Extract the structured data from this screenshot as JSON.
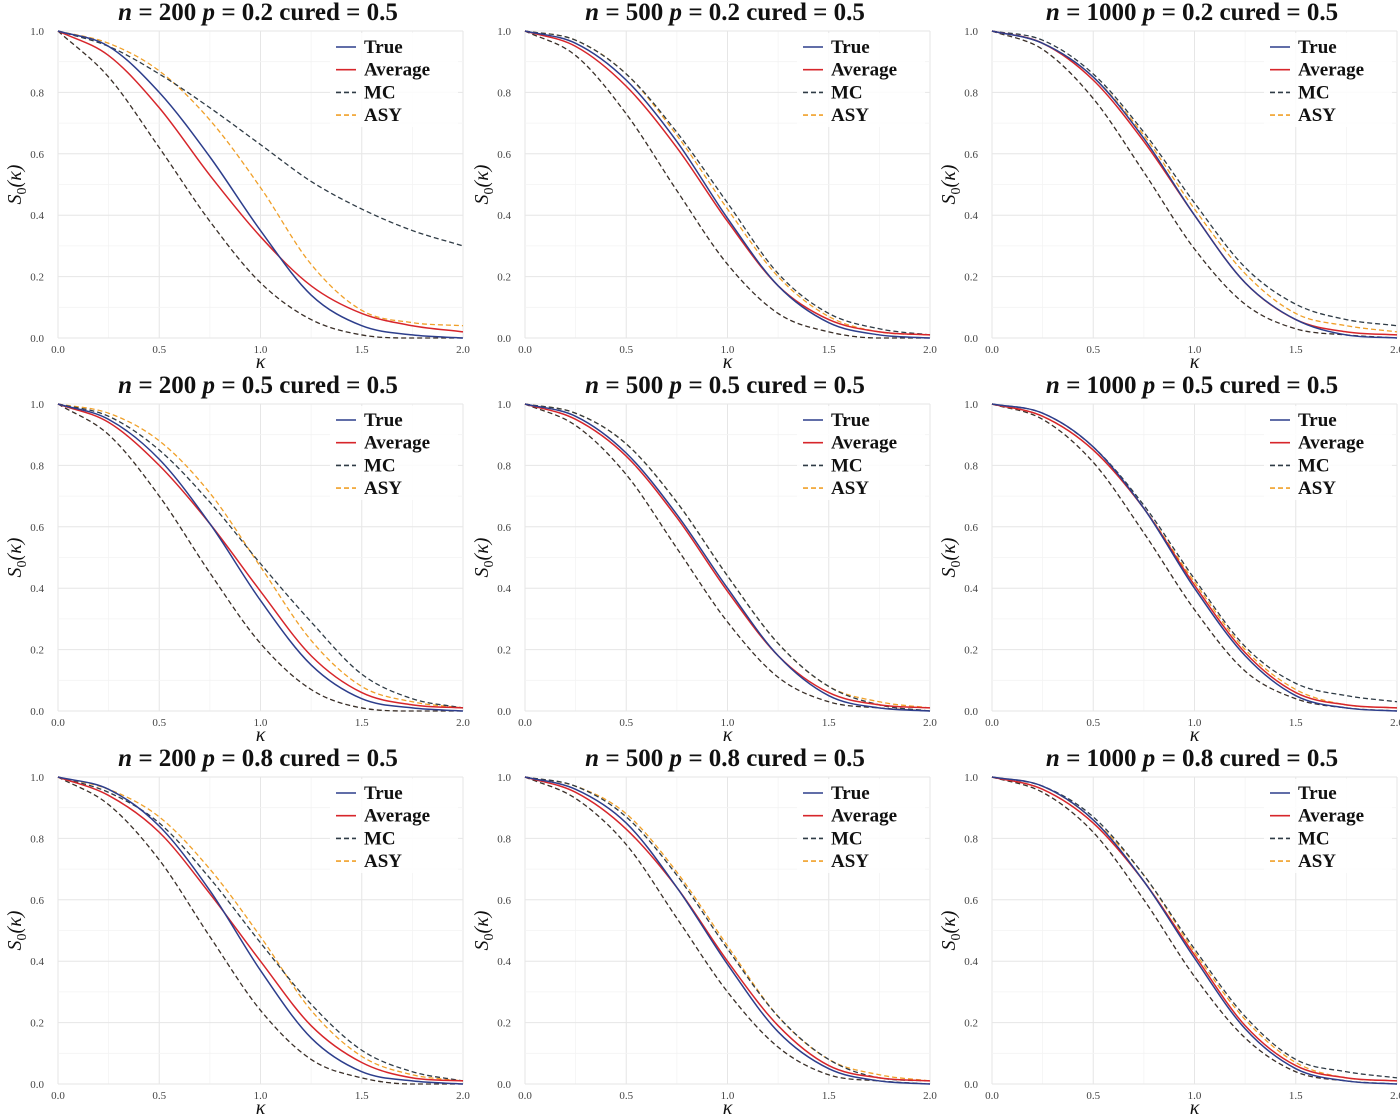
{
  "chart_data": [
    {
      "type": "line",
      "title_parts": [
        "n =",
        "200",
        "p =",
        "0.2 cured =",
        "0.5"
      ],
      "xlabel": "κ",
      "ylabel_main": "S",
      "ylabel_sub": "0",
      "ylabel_arg": "(κ)",
      "xlim": [
        0,
        2
      ],
      "ylim": [
        0,
        1
      ],
      "xticks": [
        "0.0",
        "0.5",
        "1.0",
        "1.5",
        "2.0"
      ],
      "yticks": [
        "0.0",
        "0.2",
        "0.4",
        "0.6",
        "0.8",
        "1.0"
      ],
      "grid": true,
      "legend_position": "top-right",
      "x": [
        0,
        0.25,
        0.5,
        0.75,
        1.0,
        1.25,
        1.5,
        1.75,
        2.0
      ],
      "series": [
        {
          "name": "True",
          "color": "#2d3e8c",
          "dash": "solid",
          "values": [
            1.0,
            0.95,
            0.8,
            0.59,
            0.35,
            0.14,
            0.04,
            0.01,
            0.0
          ]
        },
        {
          "name": "Average",
          "color": "#d7262b",
          "dash": "solid",
          "values": [
            1.0,
            0.92,
            0.75,
            0.53,
            0.33,
            0.17,
            0.08,
            0.04,
            0.02
          ]
        },
        {
          "name": "MC",
          "color": "#2f3b45",
          "dash": "dashed",
          "values": [
            1.0,
            0.95,
            0.86,
            0.75,
            0.63,
            0.51,
            0.42,
            0.35,
            0.3
          ]
        },
        {
          "name": "ASY",
          "color": "#f0a029",
          "dash": "dashed",
          "values": [
            1.0,
            0.96,
            0.87,
            0.71,
            0.49,
            0.24,
            0.09,
            0.05,
            0.04
          ]
        }
      ],
      "reference_line": {
        "color": "#3a2f28",
        "values": [
          1.0,
          0.85,
          0.62,
          0.38,
          0.18,
          0.06,
          0.01,
          0.0,
          0.0
        ]
      }
    },
    {
      "type": "line",
      "title_parts": [
        "n =",
        "500",
        "p =",
        "0.2 cured =",
        "0.5"
      ],
      "xlabel": "κ",
      "ylabel_main": "S",
      "ylabel_sub": "0",
      "ylabel_arg": "(κ)",
      "xlim": [
        0,
        2
      ],
      "ylim": [
        0,
        1
      ],
      "xticks": [
        "0.0",
        "0.5",
        "1.0",
        "1.5",
        "2.0"
      ],
      "yticks": [
        "0.0",
        "0.2",
        "0.4",
        "0.6",
        "0.8",
        "1.0"
      ],
      "grid": true,
      "legend_position": "top-right",
      "x": [
        0,
        0.25,
        0.5,
        0.75,
        1.0,
        1.25,
        1.5,
        1.75,
        2.0
      ],
      "series": [
        {
          "name": "True",
          "color": "#2d3e8c",
          "dash": "solid",
          "values": [
            1.0,
            0.96,
            0.84,
            0.64,
            0.39,
            0.17,
            0.05,
            0.01,
            0.0
          ]
        },
        {
          "name": "Average",
          "color": "#d7262b",
          "dash": "solid",
          "values": [
            1.0,
            0.95,
            0.82,
            0.62,
            0.38,
            0.17,
            0.06,
            0.02,
            0.01
          ]
        },
        {
          "name": "MC",
          "color": "#2f3b45",
          "dash": "dashed",
          "values": [
            1.0,
            0.97,
            0.86,
            0.67,
            0.44,
            0.21,
            0.08,
            0.03,
            0.01
          ]
        },
        {
          "name": "ASY",
          "color": "#f0a029",
          "dash": "dashed",
          "values": [
            1.0,
            0.97,
            0.86,
            0.66,
            0.42,
            0.2,
            0.07,
            0.02,
            0.01
          ]
        }
      ],
      "reference_line": {
        "color": "#3a2f28",
        "values": [
          1.0,
          0.92,
          0.73,
          0.48,
          0.24,
          0.08,
          0.02,
          0.0,
          0.0
        ]
      }
    },
    {
      "type": "line",
      "title_parts": [
        "n =",
        "1000",
        "p =",
        "0.2 cured =",
        "0.5"
      ],
      "xlabel": "κ",
      "ylabel_main": "S",
      "ylabel_sub": "0",
      "ylabel_arg": "(κ)",
      "xlim": [
        0,
        2
      ],
      "ylim": [
        0,
        1
      ],
      "xticks": [
        "0.0",
        "0.5",
        "1.0",
        "1.5",
        "2.0"
      ],
      "yticks": [
        "0.0",
        "0.2",
        "0.4",
        "0.6",
        "0.8",
        "1.0"
      ],
      "grid": true,
      "legend_position": "top-right",
      "x": [
        0,
        0.25,
        0.5,
        0.75,
        1.0,
        1.25,
        1.5,
        1.75,
        2.0
      ],
      "series": [
        {
          "name": "True",
          "color": "#2d3e8c",
          "dash": "solid",
          "values": [
            1.0,
            0.96,
            0.85,
            0.65,
            0.4,
            0.18,
            0.06,
            0.01,
            0.0
          ]
        },
        {
          "name": "Average",
          "color": "#d7262b",
          "dash": "solid",
          "values": [
            1.0,
            0.96,
            0.84,
            0.64,
            0.4,
            0.18,
            0.06,
            0.02,
            0.01
          ]
        },
        {
          "name": "MC",
          "color": "#2f3b45",
          "dash": "dashed",
          "values": [
            1.0,
            0.97,
            0.86,
            0.67,
            0.44,
            0.23,
            0.11,
            0.06,
            0.04
          ]
        },
        {
          "name": "ASY",
          "color": "#f0a029",
          "dash": "dashed",
          "values": [
            1.0,
            0.96,
            0.85,
            0.66,
            0.42,
            0.21,
            0.08,
            0.04,
            0.02
          ]
        }
      ],
      "reference_line": {
        "color": "#3a2f28",
        "values": [
          1.0,
          0.94,
          0.78,
          0.54,
          0.29,
          0.11,
          0.03,
          0.01,
          0.0
        ]
      }
    },
    {
      "type": "line",
      "title_parts": [
        "n =",
        "200",
        "p =",
        "0.5 cured =",
        "0.5"
      ],
      "xlabel": "κ",
      "ylabel_main": "S",
      "ylabel_sub": "0",
      "ylabel_arg": "(κ)",
      "xlim": [
        0,
        2
      ],
      "ylim": [
        0,
        1
      ],
      "xticks": [
        "0.0",
        "0.5",
        "1.0",
        "1.5",
        "2.0"
      ],
      "yticks": [
        "0.0",
        "0.2",
        "0.4",
        "0.6",
        "0.8",
        "1.0"
      ],
      "grid": true,
      "legend_position": "top-right",
      "x": [
        0,
        0.25,
        0.5,
        0.75,
        1.0,
        1.25,
        1.5,
        1.75,
        2.0
      ],
      "series": [
        {
          "name": "True",
          "color": "#2d3e8c",
          "dash": "solid",
          "values": [
            1.0,
            0.95,
            0.82,
            0.61,
            0.36,
            0.15,
            0.04,
            0.01,
            0.0
          ]
        },
        {
          "name": "Average",
          "color": "#d7262b",
          "dash": "solid",
          "values": [
            1.0,
            0.94,
            0.8,
            0.61,
            0.39,
            0.18,
            0.06,
            0.02,
            0.01
          ]
        },
        {
          "name": "MC",
          "color": "#2f3b45",
          "dash": "dashed",
          "values": [
            1.0,
            0.96,
            0.85,
            0.68,
            0.48,
            0.29,
            0.12,
            0.04,
            0.01
          ]
        },
        {
          "name": "ASY",
          "color": "#f0a029",
          "dash": "dashed",
          "values": [
            1.0,
            0.97,
            0.88,
            0.71,
            0.47,
            0.23,
            0.08,
            0.03,
            0.01
          ]
        }
      ],
      "reference_line": {
        "color": "#3a2f28",
        "values": [
          1.0,
          0.9,
          0.7,
          0.45,
          0.22,
          0.07,
          0.01,
          0.0,
          0.0
        ]
      }
    },
    {
      "type": "line",
      "title_parts": [
        "n =",
        "500",
        "p =",
        "0.5 cured =",
        "0.5"
      ],
      "xlabel": "κ",
      "ylabel_main": "S",
      "ylabel_sub": "0",
      "ylabel_arg": "(κ)",
      "xlim": [
        0,
        2
      ],
      "ylim": [
        0,
        1
      ],
      "xticks": [
        "0.0",
        "0.5",
        "1.0",
        "1.5",
        "2.0"
      ],
      "yticks": [
        "0.0",
        "0.2",
        "0.4",
        "0.6",
        "0.8",
        "1.0"
      ],
      "grid": true,
      "legend_position": "top-right",
      "x": [
        0,
        0.25,
        0.5,
        0.75,
        1.0,
        1.25,
        1.5,
        1.75,
        2.0
      ],
      "series": [
        {
          "name": "True",
          "color": "#2d3e8c",
          "dash": "solid",
          "values": [
            1.0,
            0.96,
            0.84,
            0.64,
            0.4,
            0.18,
            0.05,
            0.01,
            0.0
          ]
        },
        {
          "name": "Average",
          "color": "#d7262b",
          "dash": "solid",
          "values": [
            1.0,
            0.95,
            0.83,
            0.63,
            0.39,
            0.18,
            0.06,
            0.02,
            0.01
          ]
        },
        {
          "name": "MC",
          "color": "#2f3b45",
          "dash": "dashed",
          "values": [
            1.0,
            0.97,
            0.87,
            0.68,
            0.44,
            0.22,
            0.08,
            0.02,
            0.0
          ]
        },
        {
          "name": "ASY",
          "color": "#f0a029",
          "dash": "dashed",
          "values": [
            1.0,
            0.97,
            0.87,
            0.68,
            0.44,
            0.22,
            0.08,
            0.03,
            0.01
          ]
        }
      ],
      "reference_line": {
        "color": "#3a2f28",
        "values": [
          1.0,
          0.93,
          0.77,
          0.53,
          0.29,
          0.11,
          0.03,
          0.01,
          0.0
        ]
      }
    },
    {
      "type": "line",
      "title_parts": [
        "n =",
        "1000",
        "p =",
        "0.5 cured =",
        "0.5"
      ],
      "xlabel": "κ",
      "ylabel_main": "S",
      "ylabel_sub": "0",
      "ylabel_arg": "(κ)",
      "xlim": [
        0,
        2
      ],
      "ylim": [
        0,
        1
      ],
      "xticks": [
        "0.0",
        "0.5",
        "1.0",
        "1.5",
        "2.0"
      ],
      "yticks": [
        "0.0",
        "0.2",
        "0.4",
        "0.6",
        "0.8",
        "1.0"
      ],
      "grid": true,
      "legend_position": "top-right",
      "x": [
        0,
        0.25,
        0.5,
        0.75,
        1.0,
        1.25,
        1.5,
        1.75,
        2.0
      ],
      "series": [
        {
          "name": "True",
          "color": "#2d3e8c",
          "dash": "solid",
          "values": [
            1.0,
            0.97,
            0.86,
            0.66,
            0.4,
            0.18,
            0.05,
            0.01,
            0.0
          ]
        },
        {
          "name": "Average",
          "color": "#d7262b",
          "dash": "solid",
          "values": [
            1.0,
            0.96,
            0.85,
            0.66,
            0.41,
            0.19,
            0.06,
            0.02,
            0.01
          ]
        },
        {
          "name": "MC",
          "color": "#2f3b45",
          "dash": "dashed",
          "values": [
            1.0,
            0.97,
            0.86,
            0.67,
            0.43,
            0.21,
            0.09,
            0.05,
            0.03
          ]
        },
        {
          "name": "ASY",
          "color": "#f0a029",
          "dash": "dashed",
          "values": [
            1.0,
            0.96,
            0.85,
            0.66,
            0.42,
            0.2,
            0.07,
            0.02,
            0.01
          ]
        }
      ],
      "reference_line": {
        "color": "#3a2f28",
        "values": [
          1.0,
          0.95,
          0.81,
          0.58,
          0.33,
          0.13,
          0.04,
          0.01,
          0.0
        ]
      }
    },
    {
      "type": "line",
      "title_parts": [
        "n =",
        "200",
        "p =",
        "0.8 cured =",
        "0.5"
      ],
      "xlabel": "κ",
      "ylabel_main": "S",
      "ylabel_sub": "0",
      "ylabel_arg": "(κ)",
      "xlim": [
        0,
        2
      ],
      "ylim": [
        0,
        1
      ],
      "xticks": [
        "0.0",
        "0.5",
        "1.0",
        "1.5",
        "2.0"
      ],
      "yticks": [
        "0.0",
        "0.2",
        "0.4",
        "0.6",
        "0.8",
        "1.0"
      ],
      "grid": true,
      "legend_position": "top-right",
      "x": [
        0,
        0.25,
        0.5,
        0.75,
        1.0,
        1.25,
        1.5,
        1.75,
        2.0
      ],
      "series": [
        {
          "name": "True",
          "color": "#2d3e8c",
          "dash": "solid",
          "values": [
            1.0,
            0.96,
            0.84,
            0.63,
            0.37,
            0.15,
            0.04,
            0.01,
            0.0
          ]
        },
        {
          "name": "Average",
          "color": "#d7262b",
          "dash": "solid",
          "values": [
            1.0,
            0.94,
            0.82,
            0.62,
            0.4,
            0.19,
            0.07,
            0.02,
            0.01
          ]
        },
        {
          "name": "MC",
          "color": "#2f3b45",
          "dash": "dashed",
          "values": [
            1.0,
            0.95,
            0.85,
            0.67,
            0.46,
            0.26,
            0.11,
            0.04,
            0.01
          ]
        },
        {
          "name": "ASY",
          "color": "#f0a029",
          "dash": "dashed",
          "values": [
            1.0,
            0.96,
            0.87,
            0.7,
            0.48,
            0.24,
            0.09,
            0.03,
            0.01
          ]
        }
      ],
      "reference_line": {
        "color": "#3a2f28",
        "values": [
          1.0,
          0.91,
          0.73,
          0.48,
          0.24,
          0.08,
          0.02,
          0.0,
          0.0
        ]
      }
    },
    {
      "type": "line",
      "title_parts": [
        "n =",
        "500",
        "p =",
        "0.8 cured =",
        "0.5"
      ],
      "xlabel": "κ",
      "ylabel_main": "S",
      "ylabel_sub": "0",
      "ylabel_arg": "(κ)",
      "xlim": [
        0,
        2
      ],
      "ylim": [
        0,
        1
      ],
      "xticks": [
        "0.0",
        "0.5",
        "1.0",
        "1.5",
        "2.0"
      ],
      "yticks": [
        "0.0",
        "0.2",
        "0.4",
        "0.6",
        "0.8",
        "1.0"
      ],
      "grid": true,
      "legend_position": "top-right",
      "x": [
        0,
        0.25,
        0.5,
        0.75,
        1.0,
        1.25,
        1.5,
        1.75,
        2.0
      ],
      "series": [
        {
          "name": "True",
          "color": "#2d3e8c",
          "dash": "solid",
          "values": [
            1.0,
            0.96,
            0.85,
            0.64,
            0.39,
            0.17,
            0.05,
            0.01,
            0.0
          ]
        },
        {
          "name": "Average",
          "color": "#d7262b",
          "dash": "solid",
          "values": [
            1.0,
            0.95,
            0.83,
            0.64,
            0.4,
            0.19,
            0.06,
            0.02,
            0.01
          ]
        },
        {
          "name": "MC",
          "color": "#2f3b45",
          "dash": "dashed",
          "values": [
            1.0,
            0.97,
            0.87,
            0.68,
            0.44,
            0.22,
            0.08,
            0.02,
            0.01
          ]
        },
        {
          "name": "ASY",
          "color": "#f0a029",
          "dash": "dashed",
          "values": [
            1.0,
            0.97,
            0.88,
            0.69,
            0.45,
            0.22,
            0.08,
            0.03,
            0.01
          ]
        }
      ],
      "reference_line": {
        "color": "#3a2f28",
        "values": [
          1.0,
          0.93,
          0.78,
          0.54,
          0.3,
          0.12,
          0.03,
          0.01,
          0.0
        ]
      }
    },
    {
      "type": "line",
      "title_parts": [
        "n =",
        "1000",
        "p =",
        "0.8 cured =",
        "0.5"
      ],
      "xlabel": "κ",
      "ylabel_main": "S",
      "ylabel_sub": "0",
      "ylabel_arg": "(κ)",
      "xlim": [
        0,
        2
      ],
      "ylim": [
        0,
        1
      ],
      "xticks": [
        "0.0",
        "0.5",
        "1.0",
        "1.5",
        "2.0"
      ],
      "yticks": [
        "0.0",
        "0.2",
        "0.4",
        "0.6",
        "0.8",
        "1.0"
      ],
      "grid": true,
      "legend_position": "top-right",
      "x": [
        0,
        0.25,
        0.5,
        0.75,
        1.0,
        1.25,
        1.5,
        1.75,
        2.0
      ],
      "series": [
        {
          "name": "True",
          "color": "#2d3e8c",
          "dash": "solid",
          "values": [
            1.0,
            0.97,
            0.86,
            0.66,
            0.41,
            0.18,
            0.05,
            0.01,
            0.0
          ]
        },
        {
          "name": "Average",
          "color": "#d7262b",
          "dash": "solid",
          "values": [
            1.0,
            0.96,
            0.85,
            0.66,
            0.42,
            0.19,
            0.06,
            0.02,
            0.01
          ]
        },
        {
          "name": "MC",
          "color": "#2f3b45",
          "dash": "dashed",
          "values": [
            1.0,
            0.97,
            0.87,
            0.68,
            0.44,
            0.22,
            0.08,
            0.04,
            0.02
          ]
        },
        {
          "name": "ASY",
          "color": "#f0a029",
          "dash": "dashed",
          "values": [
            1.0,
            0.97,
            0.86,
            0.68,
            0.43,
            0.21,
            0.07,
            0.02,
            0.01
          ]
        }
      ],
      "reference_line": {
        "color": "#3a2f28",
        "values": [
          1.0,
          0.95,
          0.82,
          0.6,
          0.35,
          0.15,
          0.04,
          0.01,
          0.0
        ]
      }
    }
  ]
}
